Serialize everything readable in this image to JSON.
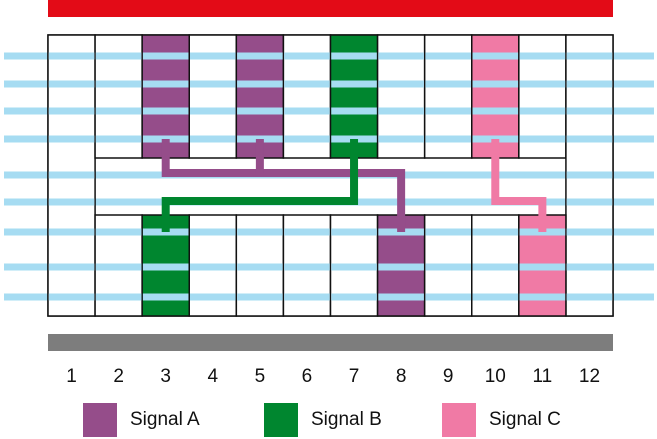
{
  "diagram": {
    "columns": [
      "1",
      "2",
      "3",
      "4",
      "5",
      "6",
      "7",
      "8",
      "9",
      "10",
      "11",
      "12"
    ],
    "colors": {
      "top_bar": "#e30b17",
      "bottom_bar": "#7d7d7d",
      "stripe": "#a6dcf2",
      "signal_a": "#954d8a",
      "signal_b": "#00862f",
      "signal_c": "#f07aa5"
    },
    "signals": [
      {
        "key": "a",
        "label": "Signal A",
        "color": "#954d8a",
        "top_columns": [
          3,
          5
        ],
        "bottom_columns": [
          8
        ]
      },
      {
        "key": "b",
        "label": "Signal B",
        "color": "#00862f",
        "top_columns": [
          7
        ],
        "bottom_columns": [
          3
        ]
      },
      {
        "key": "c",
        "label": "Signal C",
        "color": "#f07aa5",
        "top_columns": [
          10
        ],
        "bottom_columns": [
          11
        ]
      }
    ]
  }
}
